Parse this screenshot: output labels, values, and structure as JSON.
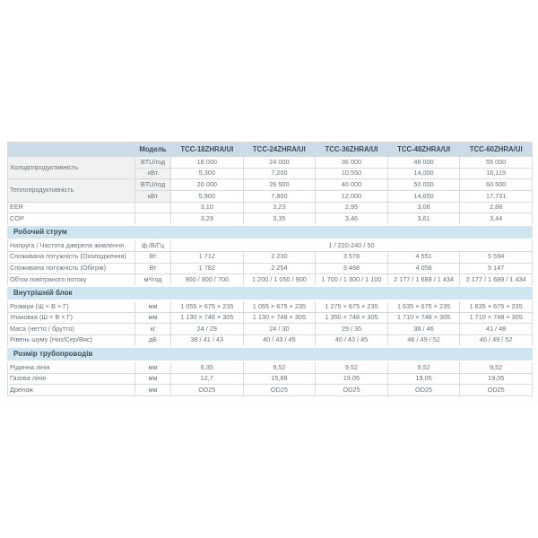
{
  "colors": {
    "header_bg": "#ccdce6",
    "section_band_bg": "#cfe5f0",
    "border": "#d8dbdd",
    "text": "#68737a",
    "heading_text": "#3d4e59"
  },
  "table": {
    "header": {
      "model_label": "Модель",
      "models": [
        "TCC-18ZHRA/UI",
        "TCC-24ZHRA/UI",
        "TCC-36ZHRA/UI",
        "TCC-48ZHRA/UI",
        "TCC-60ZHRA/UI"
      ]
    },
    "sections": [
      {
        "title": null,
        "rows": [
          {
            "label": "Холодопродуктивність",
            "rowspan": 2,
            "shade": true,
            "unit": "BTU/год",
            "values": [
              "18 000",
              "24 000",
              "36 000",
              "48 000",
              "55 000"
            ]
          },
          {
            "label": null,
            "shade": true,
            "unit": "кВт",
            "values": [
              "5,300",
              "7,200",
              "10,550",
              "14,000",
              "16,119"
            ]
          },
          {
            "label": "Теплопродуктивність",
            "rowspan": 2,
            "shade": true,
            "unit": "BTU/год",
            "values": [
              "20 000",
              "26 500",
              "40 000",
              "50 000",
              "60 500"
            ]
          },
          {
            "label": null,
            "shade": true,
            "unit": "кВт",
            "values": [
              "5,900",
              "7,900",
              "12,000",
              "14,650",
              "17,731"
            ]
          },
          {
            "label": "EER",
            "unit": "",
            "values": [
              "3,10",
              "3,23",
              "2,95",
              "3,08",
              "2,88"
            ]
          },
          {
            "label": "COP",
            "unit": "",
            "values": [
              "3,29",
              "3,35",
              "3,46",
              "3,61",
              "3,44"
            ]
          }
        ]
      },
      {
        "title": "Робочий струм",
        "rows": [
          {
            "label": "Напруга / Частота джерела живлення",
            "unit": "ф./В/Гц",
            "span_value": "1 / 220-240 / 50"
          },
          {
            "label": "Споживана потужність (Охолодження)",
            "unit": "Вт",
            "values": [
              "1 712",
              "2 230",
              "3 578",
              "4 551",
              "5 594"
            ]
          },
          {
            "label": "Споживана потужність (Обігрів)",
            "unit": "Вт",
            "values": [
              "1 782",
              "2 254",
              "3 468",
              "4 058",
              "5 147"
            ]
          },
          {
            "label": "Об'єм повітряного потоку",
            "unit": "м³/год",
            "values": [
              "900 / 800 / 700",
              "1 200 / 1 050 / 900",
              "1 700 / 1 300 / 1 100",
              "2 177 / 1 689 / 1 434",
              "2 177 / 1 689 / 1 434"
            ]
          }
        ]
      },
      {
        "title": "Внутрішній блок",
        "rows": [
          {
            "label": "Розміри (Ш × В × Г)",
            "unit": "мм",
            "values": [
              "1 055 × 675 × 235",
              "1 055 × 675 × 235",
              "1 275 × 675 × 235",
              "1 635 × 675 × 235",
              "1 635 × 675 × 235"
            ]
          },
          {
            "label": "Упаковка (Ш × В × Г)",
            "unit": "мм",
            "values": [
              "1 130 × 748 × 305",
              "1 130 × 748 × 305",
              "1 350 × 748 × 305",
              "1 710 × 748 × 305",
              "1 710 × 748 × 305"
            ]
          },
          {
            "label": "Маса (нетто / брутто)",
            "unit": "кг",
            "values": [
              "24 / 29",
              "24 / 30",
              "29 / 35",
              "38 / 46",
              "41 / 48"
            ]
          },
          {
            "label": "Рівень шуму (Низ/Сер/Вис)",
            "unit": "дБ",
            "values": [
              "38 / 41 / 43",
              "40 / 43 / 45",
              "40 / 43 / 45",
              "46 / 49 / 52",
              "46 / 49 / 52"
            ]
          }
        ]
      },
      {
        "title": "Розмір трубопроводів",
        "rows": [
          {
            "label": "Рідинна лінія",
            "unit": "мм",
            "values": [
              "6,35",
              "9,52",
              "9,52",
              "9,52",
              "9,52"
            ]
          },
          {
            "label": "Газова лінія",
            "unit": "мм",
            "values": [
              "12,7",
              "15,88",
              "19,05",
              "19,05",
              "19,05"
            ]
          },
          {
            "label": "Дренаж",
            "unit": "мм",
            "values": [
              "OD25",
              "OD25",
              "OD25",
              "OD25",
              "OD25"
            ]
          }
        ]
      }
    ]
  }
}
